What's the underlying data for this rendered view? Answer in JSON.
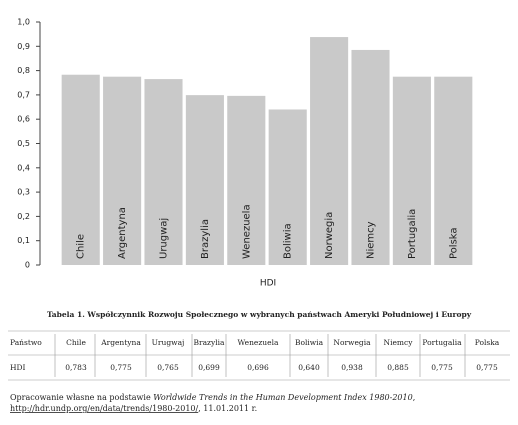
{
  "chart_data": {
    "type": "bar",
    "x_label": "HDI",
    "categories": [
      "Chile",
      "Argentyna",
      "Urugwaj",
      "Brazylia",
      "Wenezuela",
      "Boliwia",
      "Norwegia",
      "Niemcy",
      "Portugalia",
      "Polska"
    ],
    "values": [
      0.783,
      0.775,
      0.765,
      0.699,
      0.696,
      0.64,
      0.938,
      0.885,
      0.775,
      0.775
    ],
    "color": "#c9c9c9",
    "ylim": [
      0,
      1.0
    ],
    "yticks": [
      0,
      {
        "value": 0.1,
        "label": "0,1"
      },
      {
        "value": 0.2,
        "label": "0,2"
      },
      {
        "value": 0.3,
        "label": "0,3"
      },
      {
        "value": 0.4,
        "label": "0,4"
      },
      {
        "value": 0.5,
        "label": "0,5"
      },
      {
        "value": 0.6,
        "label": "0,6"
      },
      {
        "value": 0.7,
        "label": "0,7"
      },
      {
        "value": 0.8,
        "label": "0,8"
      },
      {
        "value": 0.9,
        "label": "0,9"
      },
      {
        "value": 1.0,
        "label": "1,0"
      }
    ]
  },
  "table": {
    "title": "Tabela 1. Współczynnik Rozwoju Społecznego w wybranych państwach Ameryki Południowej i Europy",
    "rows": [
      [
        "Państwo",
        "Chile",
        "Argentyna",
        "Urugwaj",
        "Brazylia",
        "Wenezuela",
        "Boliwia",
        "Norwegia",
        "Niemcy",
        "Portugalia",
        "Polska"
      ],
      [
        "HDI",
        "0,783",
        "0,775",
        "0,765",
        "0,699",
        "0,696",
        "0,640",
        "0,938",
        "0,885",
        "0,775",
        "0,775"
      ]
    ]
  },
  "source": {
    "prefix": "Opracowanie własne na podstawie ",
    "italic": "Worldwide Trends in the Human Development Index 1980-2010",
    "after_italic": ",",
    "link": "http://hdr.undp.org/en/data/trends/1980-2010/",
    "suffix": ", 11.01.2011 r."
  }
}
